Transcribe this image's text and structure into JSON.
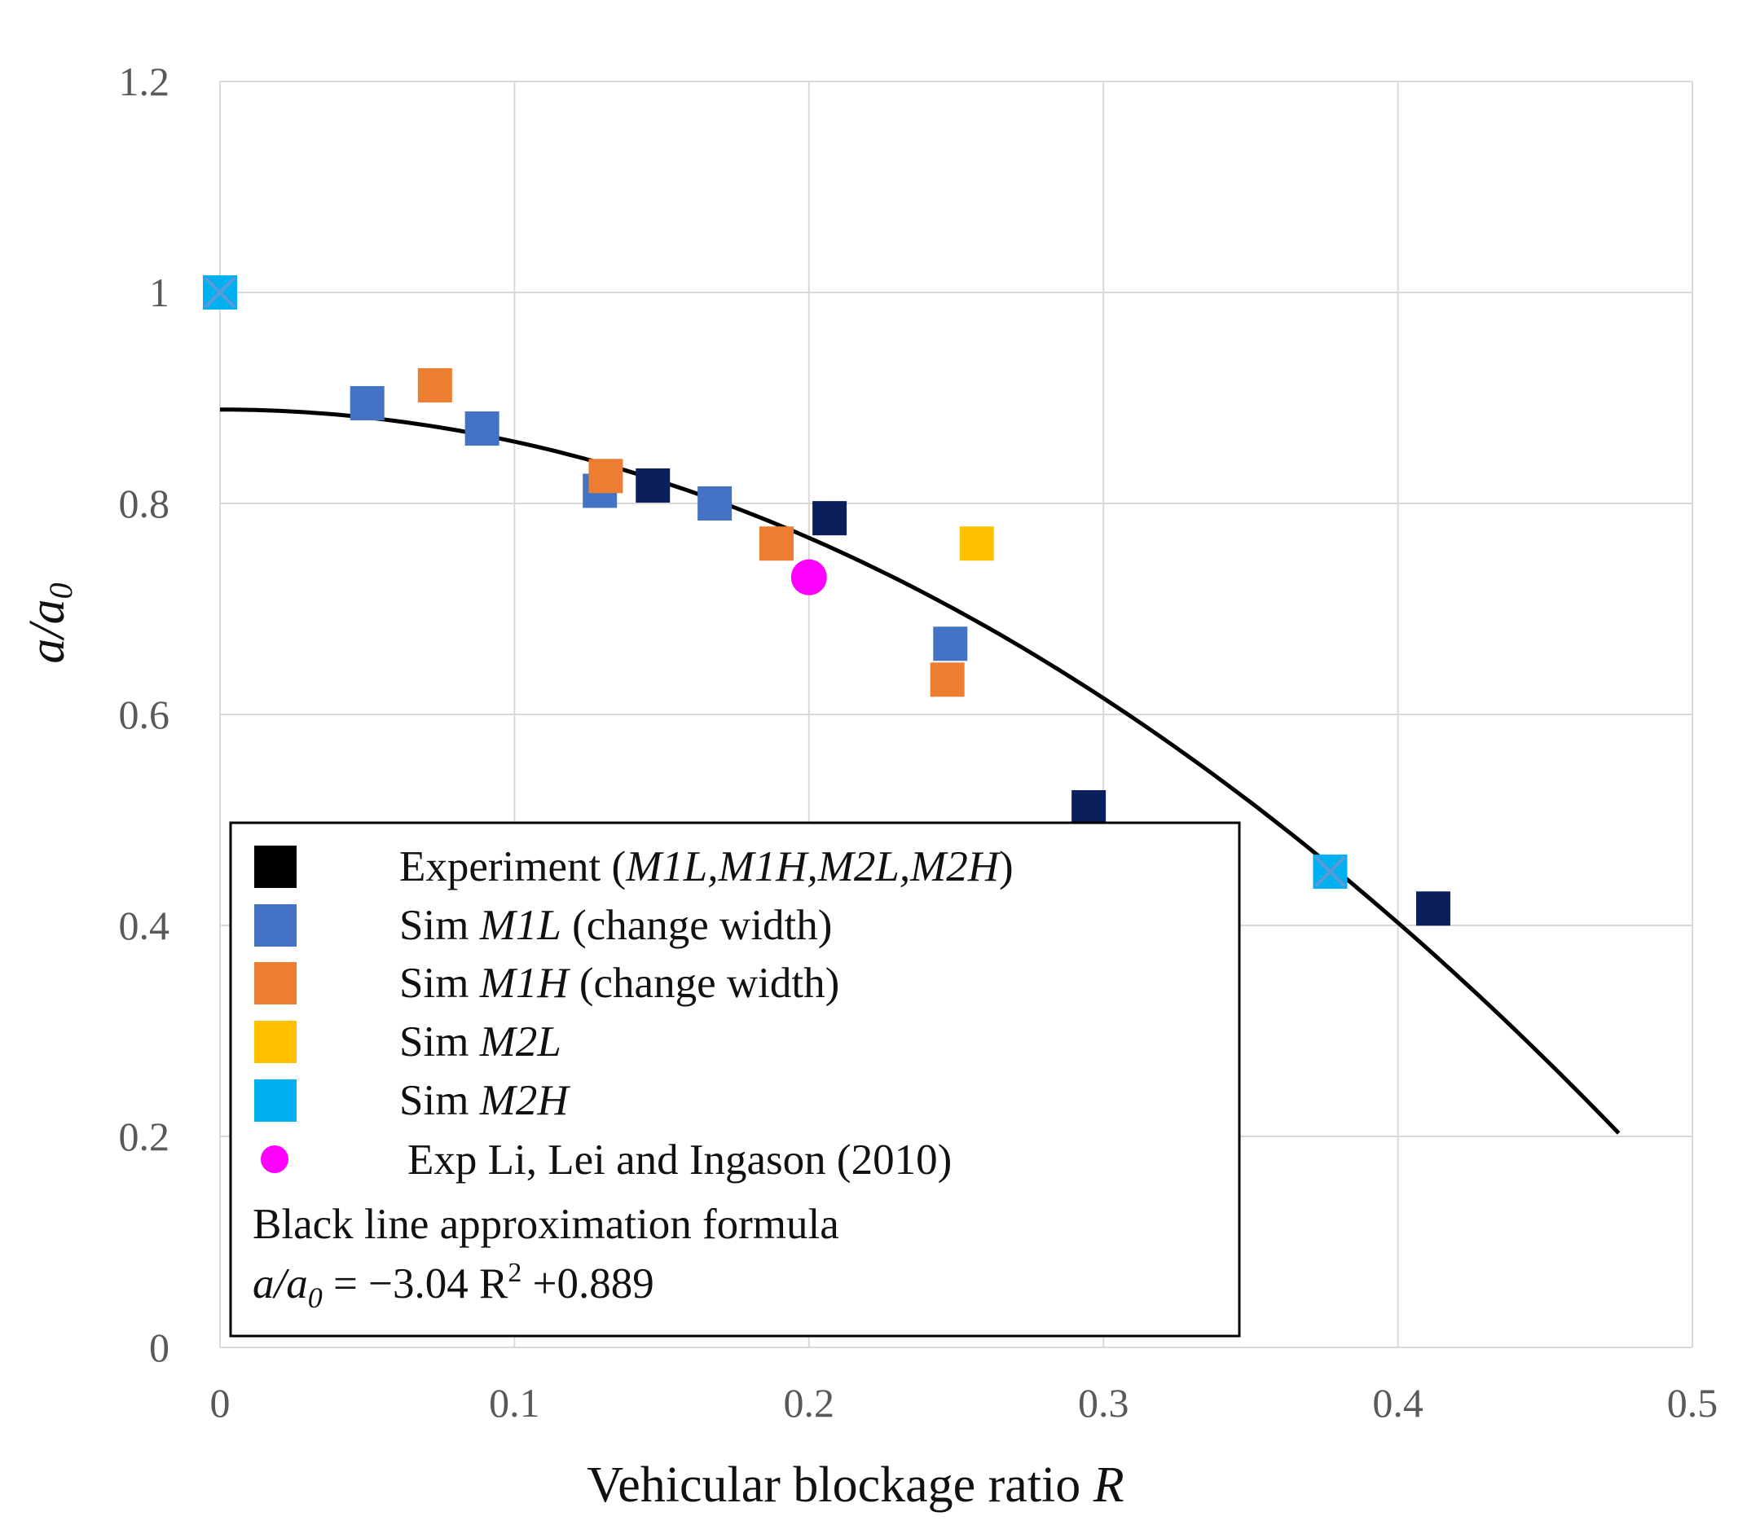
{
  "chart_data": {
    "type": "scatter",
    "title": "",
    "xlabel": "Vehicular blockage ratio R",
    "xlabel_main": "Vehicular blockage ratio ",
    "xlabel_var": "R",
    "ylabel": "a/a0",
    "ylabel_main": "a/a",
    "ylabel_sub": "0",
    "xlim": [
      0,
      0.5
    ],
    "ylim": [
      0,
      1.2
    ],
    "x_ticks": [
      "0",
      "0.1",
      "0.2",
      "0.3",
      "0.4",
      "0.5"
    ],
    "y_ticks": [
      "0",
      "0.2",
      "0.4",
      "0.6",
      "0.8",
      "1",
      "1.2"
    ],
    "grid": true,
    "legend_position": "bottom-left",
    "series": [
      {
        "name": "Experiment (M1L,M1H,M2L,M2H)",
        "label_main": "Experiment (",
        "label_italic": "M1L,M1H,M2L,M2H",
        "label_tail": ")",
        "marker": "square",
        "color": "#0b1f5c",
        "legend_color": "#000000",
        "points": [
          [
            0.147,
            0.817
          ],
          [
            0.207,
            0.786
          ],
          [
            0.295,
            0.512
          ],
          [
            0.412,
            0.416
          ]
        ]
      },
      {
        "name": "Sim M1L (change width)",
        "label_main": "Sim ",
        "label_italic": "M1L",
        "label_tail": " (change width)",
        "marker": "square",
        "color": "#4472c4",
        "legend_color": "#4472c4",
        "points": [
          [
            0.05,
            0.895
          ],
          [
            0.089,
            0.871
          ],
          [
            0.129,
            0.812
          ],
          [
            0.168,
            0.8
          ],
          [
            0.248,
            0.667
          ]
        ]
      },
      {
        "name": "Sim M1H (change width)",
        "label_main": "Sim ",
        "label_italic": "M1H",
        "label_tail": " (change width)",
        "marker": "square",
        "color": "#ed7d31",
        "legend_color": "#ed7d31",
        "points": [
          [
            0.073,
            0.912
          ],
          [
            0.131,
            0.826
          ],
          [
            0.189,
            0.762
          ],
          [
            0.247,
            0.633
          ]
        ]
      },
      {
        "name": "Sim M2L",
        "label_main": "Sim ",
        "label_italic": "M2L",
        "label_tail": "",
        "marker": "square",
        "color": "#ffc000",
        "legend_color": "#ffc000",
        "points": [
          [
            0.257,
            0.762
          ]
        ]
      },
      {
        "name": "Sim M2H",
        "label_main": "Sim ",
        "label_italic": "M2H",
        "label_tail": "",
        "marker": "square-x",
        "color": "#00b0f0",
        "legend_color": "#00b0f0",
        "points": [
          [
            0,
            1.0
          ],
          [
            0.377,
            0.451
          ]
        ]
      },
      {
        "name": "Exp Li, Lei and Ingason (2010)",
        "label_main": "Exp Li, Lei and Ingason (2010)",
        "label_italic": "",
        "label_tail": "",
        "marker": "circle",
        "color": "#ff00ff",
        "legend_color": "#ff00ff",
        "points": [
          [
            0.2,
            0.73
          ]
        ]
      }
    ],
    "fit_line": {
      "name": "Black line approximation formula",
      "coef": -3.04,
      "intercept": 0.889,
      "x_range": [
        0,
        0.475
      ],
      "color": "#000000"
    },
    "legend_note": "Black line approximation formula",
    "formula": {
      "lhs_main": "a/a",
      "lhs_sub": "0",
      "rhs_a": " = −3.04 R",
      "rhs_sup": "2",
      "rhs_b": " +0.889"
    }
  }
}
